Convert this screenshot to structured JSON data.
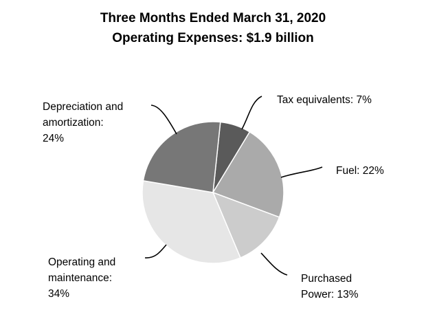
{
  "chart_data": {
    "type": "pie",
    "title": "Three Months Ended March 31, 2020",
    "subtitle": "Operating Expenses: $1.9 billion",
    "slices": [
      {
        "label_lines": [
          "Tax equivalents: 7%"
        ],
        "value": 7,
        "color": "#5a5a5a"
      },
      {
        "label_lines": [
          "Fuel: 22%"
        ],
        "value": 22,
        "color": "#aaaaaa"
      },
      {
        "label_lines": [
          "Purchased",
          "Power: 13%"
        ],
        "value": 13,
        "color": "#cccccc"
      },
      {
        "label_lines": [
          "Operating and",
          "maintenance:",
          "34%"
        ],
        "value": 34,
        "color": "#e6e6e6"
      },
      {
        "label_lines": [
          "Depreciation and",
          "amortization:",
          "24%"
        ],
        "value": 24,
        "color": "#777777"
      }
    ]
  }
}
